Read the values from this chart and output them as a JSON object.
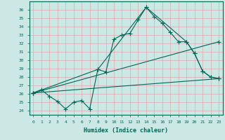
{
  "xlabel": "Humidex (Indice chaleur)",
  "bg_color": "#cce8e4",
  "grid_color": "#aad4d0",
  "line_color": "#006655",
  "xlim": [
    -0.5,
    23.5
  ],
  "ylim": [
    23.5,
    37.0
  ],
  "yticks": [
    24,
    25,
    26,
    27,
    28,
    29,
    30,
    31,
    32,
    33,
    34,
    35,
    36
  ],
  "xticks": [
    0,
    1,
    2,
    3,
    4,
    5,
    6,
    7,
    8,
    9,
    10,
    11,
    12,
    13,
    14,
    15,
    16,
    17,
    18,
    19,
    20,
    21,
    22,
    23
  ],
  "line1_x": [
    0,
    1,
    2,
    3,
    4,
    5,
    6,
    7,
    8,
    9,
    10,
    11,
    12,
    13,
    14,
    15,
    16,
    17,
    18,
    19,
    20,
    21,
    22,
    23
  ],
  "line1_y": [
    26.1,
    26.5,
    25.7,
    25.1,
    24.2,
    25.0,
    25.2,
    24.2,
    28.9,
    28.6,
    32.5,
    33.0,
    33.2,
    34.8,
    36.3,
    35.2,
    34.4,
    33.3,
    32.2,
    32.2,
    30.8,
    28.7,
    28.0,
    27.8
  ],
  "line2_x": [
    0,
    8,
    14,
    19,
    20,
    21,
    22,
    23
  ],
  "line2_y": [
    26.1,
    28.9,
    36.3,
    32.2,
    30.8,
    28.7,
    28.0,
    27.8
  ],
  "line3_x": [
    0,
    23
  ],
  "line3_y": [
    26.1,
    32.2
  ],
  "line4_x": [
    0,
    23
  ],
  "line4_y": [
    26.1,
    27.8
  ]
}
